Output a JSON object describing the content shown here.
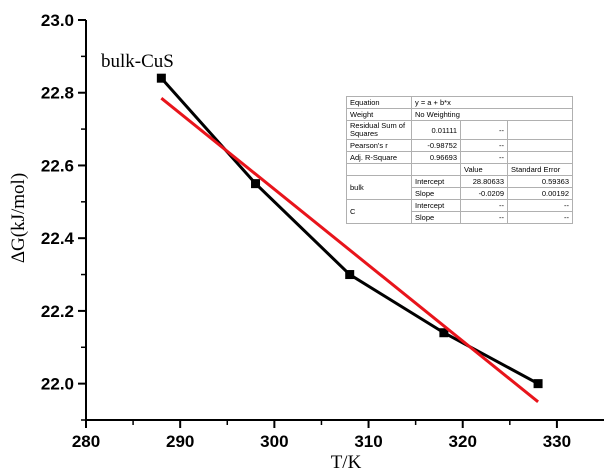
{
  "chart_data": {
    "type": "line",
    "title": "",
    "xlabel": "T/K",
    "ylabel": "ΔG(kJ/mol)",
    "xlim": [
      280,
      335
    ],
    "ylim": [
      21.9,
      23.0
    ],
    "x_ticks": [
      "280",
      "290",
      "300",
      "310",
      "320",
      "330"
    ],
    "y_ticks": [
      "22.0",
      "22.2",
      "22.4",
      "22.6",
      "22.8",
      "23.0"
    ],
    "annotation": "bulk-CuS",
    "series": [
      {
        "color": "#000000",
        "marker": "square",
        "x": [
          288,
          298,
          308,
          318,
          328
        ],
        "y": [
          22.84,
          22.55,
          22.3,
          22.14,
          22.0
        ]
      },
      {
        "color": "#e8141b",
        "marker": "none",
        "x": [
          288,
          328
        ],
        "y": [
          22.785,
          21.95
        ]
      }
    ]
  },
  "fit_table": {
    "equation_label": "Equation",
    "equation_value": "y = a + b*x",
    "weight_label": "Weight",
    "weight_value": "No Weighting",
    "rss_label": "Residual Sum of Squares",
    "rss_value": "0.01111",
    "rss_dash": "--",
    "pearson_label": "Pearson's r",
    "pearson_value": "-0.98752",
    "pearson_dash": "--",
    "r2_label": "Adj. R-Square",
    "r2_value": "0.96693",
    "r2_dash": "--",
    "value_header": "Value",
    "stderr_header": "Standard Error",
    "group1": "bulk",
    "group1_intercept_label": "Intercept",
    "group1_intercept_value": "28.80633",
    "group1_intercept_err": "0.59363",
    "group1_slope_label": "Slope",
    "group1_slope_value": "-0.0209",
    "group1_slope_err": "0.00192",
    "group2": "C",
    "group2_intercept_label": "Intercept",
    "group2_intercept_value": "--",
    "group2_intercept_err": "--",
    "group2_slope_label": "Slope",
    "group2_slope_value": "--",
    "group2_slope_err": "--"
  }
}
